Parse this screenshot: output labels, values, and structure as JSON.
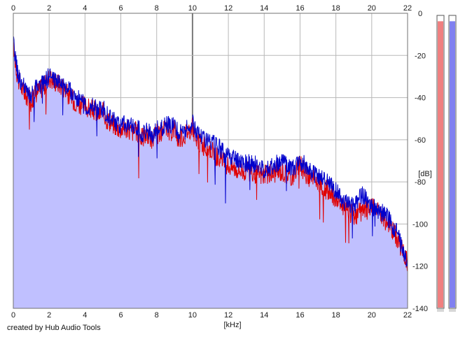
{
  "footer": {
    "credit": "created by Hub Audio Tools"
  },
  "chart_data": {
    "type": "line",
    "title": "",
    "xlabel": "[kHz]",
    "ylabel": "[dB]",
    "xlim": [
      0,
      22
    ],
    "ylim": [
      -140,
      0
    ],
    "x_ticks": [
      0,
      2,
      4,
      6,
      8,
      10,
      12,
      14,
      16,
      18,
      20,
      22
    ],
    "y_ticks": [
      0,
      -20,
      -40,
      -60,
      -80,
      -100,
      -120,
      -140
    ],
    "y_tick_labels": [
      "0",
      "-20",
      "-40",
      "-60",
      "-80",
      "-100",
      "-120",
      "-140"
    ],
    "grid": true,
    "colors": {
      "fill": "#c0c0ff",
      "left_channel": "#e00000",
      "right_channel": "#0000cc",
      "grid": "#b8b8b8",
      "major_grid": "#7a7a7a",
      "meter_left": "#f08080",
      "meter_right": "#8080f0"
    },
    "series": [
      {
        "x": [
          0,
          0.1,
          0.2,
          0.3,
          0.5,
          0.8,
          1.0,
          1.2,
          1.5,
          1.8,
          2.0,
          2.2,
          2.5,
          2.8,
          3.0,
          3.2,
          3.5,
          3.8,
          4.0,
          4.2,
          4.5,
          4.8,
          5.0,
          5.2,
          5.5,
          5.8,
          6.0,
          6.2,
          6.5,
          6.8,
          7.0,
          7.2,
          7.5,
          7.8,
          8.0,
          8.2,
          8.5,
          8.8,
          9.0,
          9.2,
          9.5,
          9.8,
          10.0,
          10.2,
          10.5,
          10.8,
          11.0,
          11.2,
          11.5,
          11.8,
          12.0,
          12.5,
          13.0,
          13.5,
          14.0,
          14.5,
          15.0,
          15.5,
          16.0,
          16.5,
          17.0,
          17.5,
          18.0,
          18.5,
          19.0,
          19.5,
          20.0,
          20.5,
          21.0,
          21.5,
          22.0
        ],
        "values": [
          -15,
          -22,
          -28,
          -32,
          -36,
          -40,
          -42,
          -38,
          -36,
          -34,
          -30,
          -32,
          -33,
          -35,
          -38,
          -40,
          -42,
          -44,
          -44,
          -45,
          -46,
          -48,
          -47,
          -50,
          -52,
          -54,
          -55,
          -54,
          -56,
          -56,
          -57,
          -59,
          -58,
          -60,
          -57,
          -58,
          -55,
          -56,
          -54,
          -60,
          -58,
          -55,
          -54,
          -60,
          -62,
          -64,
          -64,
          -66,
          -70,
          -71,
          -72,
          -74,
          -75,
          -76,
          -77,
          -76,
          -75,
          -78,
          -72,
          -78,
          -80,
          -84,
          -88,
          -92,
          -96,
          -94,
          -92,
          -96,
          -100,
          -108,
          -118
        ]
      },
      {
        "x": [
          0,
          0.1,
          0.2,
          0.3,
          0.5,
          0.8,
          1.0,
          1.2,
          1.5,
          1.8,
          2.0,
          2.2,
          2.5,
          2.8,
          3.0,
          3.2,
          3.5,
          3.8,
          4.0,
          4.2,
          4.5,
          4.8,
          5.0,
          5.2,
          5.5,
          5.8,
          6.0,
          6.2,
          6.5,
          6.8,
          7.0,
          7.2,
          7.5,
          7.8,
          8.0,
          8.2,
          8.5,
          8.8,
          9.0,
          9.2,
          9.5,
          9.8,
          10.0,
          10.2,
          10.5,
          10.8,
          11.0,
          11.2,
          11.5,
          11.8,
          12.0,
          12.5,
          13.0,
          13.5,
          14.0,
          14.5,
          15.0,
          15.5,
          16.0,
          16.5,
          17.0,
          17.5,
          18.0,
          18.5,
          19.0,
          19.5,
          20.0,
          20.5,
          21.0,
          21.5,
          22.0
        ],
        "values": [
          -14,
          -20,
          -26,
          -30,
          -34,
          -38,
          -40,
          -36,
          -34,
          -32,
          -30,
          -31,
          -32,
          -34,
          -36,
          -37,
          -40,
          -42,
          -44,
          -44,
          -44,
          -46,
          -45,
          -48,
          -50,
          -52,
          -54,
          -52,
          -54,
          -53,
          -55,
          -58,
          -56,
          -58,
          -55,
          -56,
          -52,
          -54,
          -50,
          -58,
          -56,
          -54,
          -52,
          -56,
          -58,
          -60,
          -62,
          -62,
          -64,
          -67,
          -68,
          -70,
          -71,
          -72,
          -74,
          -72,
          -70,
          -74,
          -70,
          -74,
          -78,
          -80,
          -84,
          -90,
          -92,
          -86,
          -92,
          -94,
          -98,
          -106,
          -120
        ]
      }
    ],
    "meters": [
      {
        "channel": "left",
        "level": 0.98
      },
      {
        "channel": "right",
        "level": 0.98
      }
    ]
  }
}
